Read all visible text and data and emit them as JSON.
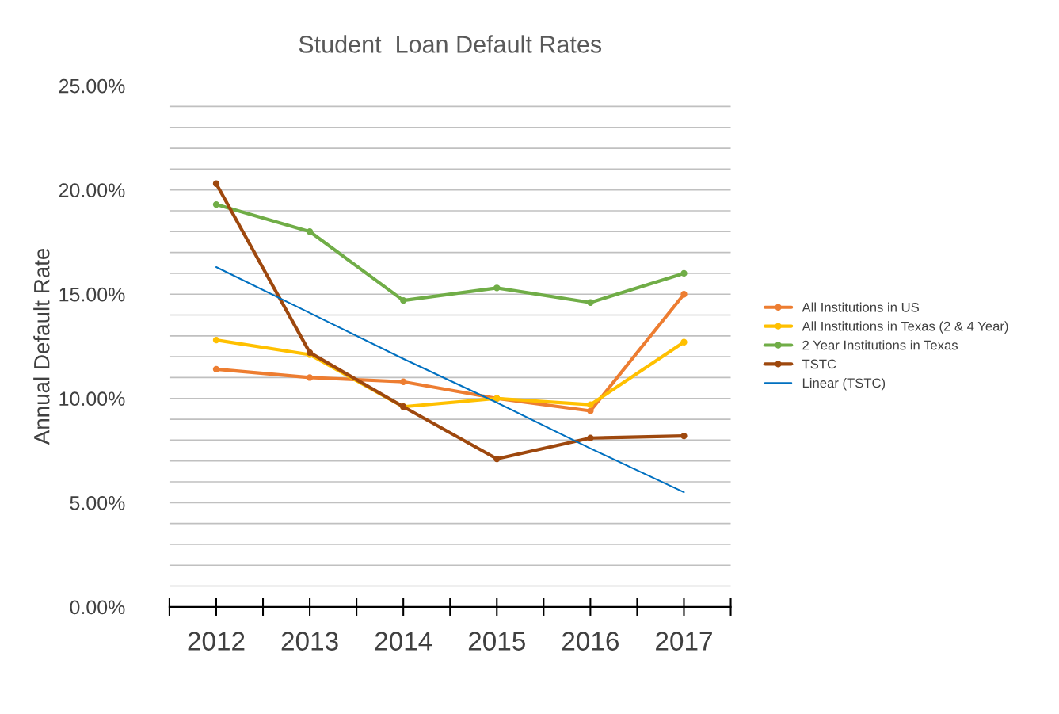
{
  "chart_data": {
    "type": "line",
    "title": "Student  Loan Default Rates",
    "ylabel": "Annual Default Rate",
    "categories": [
      "2012",
      "2013",
      "2014",
      "2015",
      "2016",
      "2017"
    ],
    "series": [
      {
        "name": "All Institutions in US",
        "color": "#ed7d31",
        "values": [
          11.4,
          11.0,
          10.8,
          10.0,
          9.4,
          15.0
        ]
      },
      {
        "name": "All Institutions in Texas (2 & 4 Year)",
        "color": "#ffc000",
        "values": [
          12.8,
          12.1,
          9.6,
          10.0,
          9.7,
          12.7
        ]
      },
      {
        "name": "2 Year Institutions in Texas",
        "color": "#70ad47",
        "values": [
          19.3,
          18.0,
          14.7,
          15.3,
          14.6,
          16.0
        ]
      },
      {
        "name": "TSTC",
        "color": "#9e480e",
        "values": [
          20.3,
          12.2,
          9.6,
          7.1,
          8.1,
          8.2
        ]
      },
      {
        "name": "Linear (TSTC)",
        "color": "#0070c0",
        "values": [
          16.3,
          14.1,
          11.9,
          9.8,
          7.6,
          5.5
        ],
        "marker": "none"
      }
    ],
    "marker": "circle",
    "line_style": "solid",
    "ylim": [
      0,
      25
    ],
    "yticks": [
      {
        "value": 0,
        "label": "0.00%"
      },
      {
        "value": 1,
        "label": null
      },
      {
        "value": 2,
        "label": null
      },
      {
        "value": 3,
        "label": null
      },
      {
        "value": 4,
        "label": null
      },
      {
        "value": 5,
        "label": "5.00%"
      },
      {
        "value": 6,
        "label": null
      },
      {
        "value": 7,
        "label": null
      },
      {
        "value": 8,
        "label": null
      },
      {
        "value": 9,
        "label": null
      },
      {
        "value": 10,
        "label": "10.00%"
      },
      {
        "value": 11,
        "label": null
      },
      {
        "value": 12,
        "label": null
      },
      {
        "value": 13,
        "label": null
      },
      {
        "value": 14,
        "label": null
      },
      {
        "value": 15,
        "label": "15.00%"
      },
      {
        "value": 16,
        "label": null
      },
      {
        "value": 17,
        "label": null
      },
      {
        "value": 18,
        "label": null
      },
      {
        "value": 19,
        "label": null
      },
      {
        "value": 20,
        "label": "20.00%"
      },
      {
        "value": 21,
        "label": null
      },
      {
        "value": 22,
        "label": null
      },
      {
        "value": 23,
        "label": null
      },
      {
        "value": 24,
        "label": null
      },
      {
        "value": 25,
        "label": "25.00%"
      }
    ],
    "grid": "y",
    "legend": "right"
  }
}
